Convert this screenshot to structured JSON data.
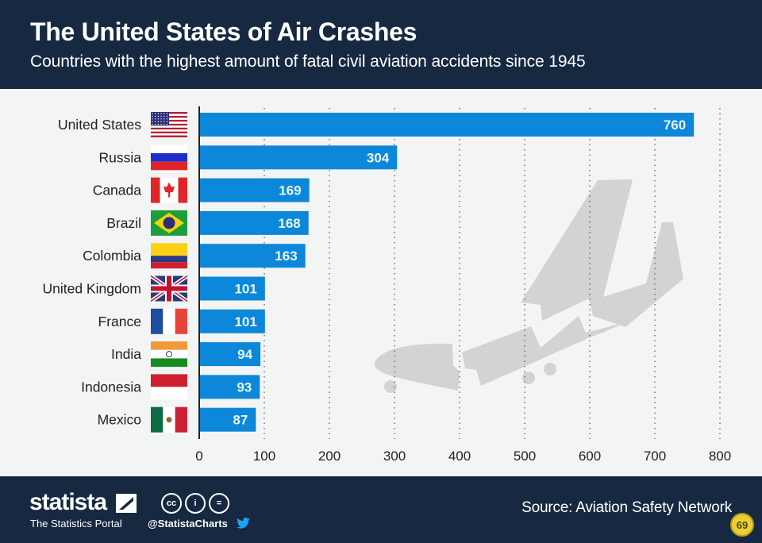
{
  "header": {
    "title": "The United States of Air Crashes",
    "subtitle": "Countries with the highest amount of fatal civil aviation accidents since 1945"
  },
  "footer": {
    "brand": "statista",
    "tagline": "The Statistics Portal",
    "license_icons": [
      "cc",
      "i",
      "="
    ],
    "handle": "@StatistaCharts",
    "source": "Source: Aviation Safety Network",
    "badge": "69"
  },
  "colors": {
    "header_bg": "#162941",
    "bar": "#0d87d9",
    "bar_label": "#ffffff",
    "background": "#f3f4f4",
    "illustration": "#d3d3d3"
  },
  "chart_data": {
    "type": "bar",
    "orientation": "horizontal",
    "title": "The United States of Air Crashes",
    "subtitle": "Countries with the highest amount of fatal civil aviation accidents since 1945",
    "xlabel": "",
    "ylabel": "",
    "categories": [
      "United States",
      "Russia",
      "Canada",
      "Brazil",
      "Colombia",
      "United Kingdom",
      "France",
      "India",
      "Indonesia",
      "Mexico"
    ],
    "flags": [
      "us",
      "ru",
      "ca",
      "br",
      "co",
      "gb",
      "fr",
      "in",
      "id",
      "mx"
    ],
    "values": [
      760,
      304,
      169,
      168,
      163,
      101,
      101,
      94,
      93,
      87
    ],
    "xlim": [
      0,
      800
    ],
    "xticks": [
      0,
      100,
      200,
      300,
      400,
      500,
      600,
      700,
      800
    ],
    "grid": "vertical dotted",
    "data_labels": true,
    "legend": "none",
    "source": "Aviation Safety Network"
  }
}
